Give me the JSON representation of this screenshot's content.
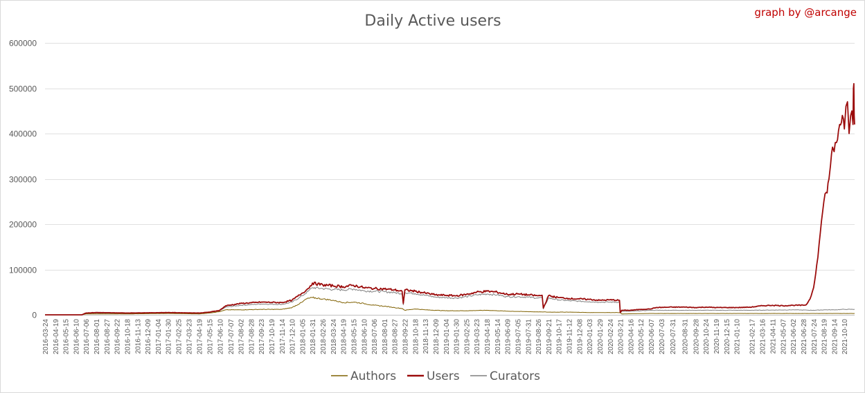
{
  "chart_data": {
    "type": "line",
    "title": "Daily Active users",
    "credit": "graph by @arcange",
    "xlabel": "",
    "ylabel": "",
    "ylim": [
      0,
      600000
    ],
    "yticks": [
      0,
      100000,
      200000,
      300000,
      400000,
      500000,
      600000
    ],
    "grid": "horizontal",
    "legend_position": "bottom",
    "x_tick_labels": [
      "2016-03-24",
      "2016-04-19",
      "2016-05-15",
      "2016-06-10",
      "2016-07-06",
      "2016-08-01",
      "2016-08-27",
      "2016-09-22",
      "2016-10-18",
      "2016-11-13",
      "2016-12-09",
      "2017-01-04",
      "2017-01-30",
      "2017-02-25",
      "2017-03-23",
      "2017-04-19",
      "2017-05-15",
      "2017-06-10",
      "2017-07-07",
      "2017-08-02",
      "2017-08-28",
      "2017-09-23",
      "2017-10-19",
      "2017-11-14",
      "2017-12-10",
      "2018-01-05",
      "2018-01-31",
      "2018-02-26",
      "2018-03-24",
      "2018-04-19",
      "2018-05-15",
      "2018-06-10",
      "2018-07-06",
      "2018-08-01",
      "2018-08-27",
      "2018-09-22",
      "2018-10-18",
      "2018-11-13",
      "2018-12-09",
      "2019-01-04",
      "2019-01-30",
      "2019-02-25",
      "2019-03-23",
      "2019-04-18",
      "2019-05-14",
      "2019-06-09",
      "2019-07-05",
      "2019-07-31",
      "2019-08-26",
      "2019-09-21",
      "2019-10-17",
      "2019-11-12",
      "2019-12-08",
      "2020-01-03",
      "2020-01-29",
      "2020-02-24",
      "2020-03-21",
      "2020-04-16",
      "2020-05-12",
      "2020-06-07",
      "2020-07-03",
      "2020-07-31",
      "2020-08-31",
      "2020-09-28",
      "2020-10-24",
      "2020-11-19",
      "2020-12-15",
      "2021-01-10",
      "2021-02-17",
      "2021-03-16",
      "2021-04-11",
      "2021-05-07",
      "2021-06-02",
      "2021-06-28",
      "2021-07-24",
      "2021-08-19",
      "2021-09-14",
      "2021-10-10"
    ],
    "series": [
      {
        "name": "Authors",
        "color": "#7f6000",
        "x": [
          "2016-03-24",
          "2016-06-25",
          "2016-07-06",
          "2016-08-01",
          "2016-10-18",
          "2017-01-30",
          "2017-04-19",
          "2017-05-15",
          "2017-06-10",
          "2017-06-25",
          "2017-08-02",
          "2017-09-23",
          "2017-11-14",
          "2017-12-10",
          "2018-01-05",
          "2018-01-15",
          "2018-01-31",
          "2018-02-26",
          "2018-03-24",
          "2018-04-19",
          "2018-05-15",
          "2018-06-10",
          "2018-07-06",
          "2018-08-01",
          "2018-08-27",
          "2018-09-15",
          "2018-09-22",
          "2018-10-18",
          "2018-11-13",
          "2018-12-09",
          "2019-01-04",
          "2019-02-25",
          "2019-04-18",
          "2019-06-09",
          "2019-07-31",
          "2019-09-21",
          "2019-11-12",
          "2020-01-03",
          "2020-03-21",
          "2020-03-25",
          "2020-06-07",
          "2020-10-24",
          "2021-02-17",
          "2021-06-02",
          "2021-07-24",
          "2021-08-19",
          "2021-09-14",
          "2021-10-10",
          "2021-11-05"
        ],
        "values": [
          0,
          0,
          2000,
          2000,
          2000,
          3000,
          2000,
          4000,
          7000,
          11000,
          11000,
          12000,
          12000,
          16000,
          28000,
          35000,
          38000,
          35000,
          32000,
          27000,
          28000,
          25000,
          21000,
          19000,
          16000,
          14000,
          10000,
          13000,
          11000,
          10000,
          9000,
          9000,
          10000,
          8000,
          7000,
          6000,
          6000,
          5000,
          5000,
          2000,
          3000,
          3000,
          3000,
          3000,
          3000,
          3000,
          3000,
          3000,
          3000
        ]
      },
      {
        "name": "Users",
        "color": "#9b0b0b",
        "x": [
          "2016-03-24",
          "2016-06-25",
          "2016-07-06",
          "2016-08-01",
          "2016-10-18",
          "2017-01-30",
          "2017-04-19",
          "2017-05-15",
          "2017-06-10",
          "2017-06-25",
          "2017-08-02",
          "2017-09-23",
          "2017-11-14",
          "2017-12-10",
          "2018-01-05",
          "2018-01-20",
          "2018-01-31",
          "2018-02-26",
          "2018-03-24",
          "2018-04-19",
          "2018-05-15",
          "2018-06-10",
          "2018-07-06",
          "2018-08-01",
          "2018-08-27",
          "2018-09-15",
          "2018-09-18",
          "2018-09-22",
          "2018-10-18",
          "2018-11-13",
          "2018-12-09",
          "2019-01-04",
          "2019-01-30",
          "2019-02-25",
          "2019-03-23",
          "2019-04-18",
          "2019-05-14",
          "2019-06-09",
          "2019-07-05",
          "2019-07-31",
          "2019-08-26",
          "2019-09-05",
          "2019-09-08",
          "2019-09-21",
          "2019-10-17",
          "2019-11-12",
          "2019-12-08",
          "2020-01-03",
          "2020-01-29",
          "2020-02-24",
          "2020-03-19",
          "2020-03-21",
          "2020-03-25",
          "2020-04-16",
          "2020-05-12",
          "2020-06-07",
          "2020-06-20",
          "2020-07-31",
          "2020-08-31",
          "2020-09-28",
          "2020-10-24",
          "2020-11-19",
          "2020-12-15",
          "2021-01-10",
          "2021-02-17",
          "2021-03-16",
          "2021-04-11",
          "2021-05-07",
          "2021-06-02",
          "2021-06-28",
          "2021-07-05",
          "2021-07-15",
          "2021-07-24",
          "2021-08-01",
          "2021-08-10",
          "2021-08-19",
          "2021-08-25",
          "2021-09-01",
          "2021-09-05",
          "2021-09-10",
          "2021-09-14",
          "2021-09-20",
          "2021-09-28",
          "2021-10-05",
          "2021-10-10",
          "2021-10-14",
          "2021-10-18",
          "2021-10-22",
          "2021-10-26",
          "2021-10-29",
          "2021-11-01",
          "2021-11-02",
          "2021-11-03",
          "2021-11-04",
          "2021-11-05"
        ],
        "values": [
          0,
          0,
          4000,
          5000,
          4000,
          5000,
          4000,
          6000,
          10000,
          20000,
          25000,
          28000,
          27000,
          32000,
          48000,
          58000,
          70000,
          66000,
          64000,
          62000,
          65000,
          60000,
          58000,
          57000,
          55000,
          52000,
          25000,
          55000,
          52000,
          48000,
          44000,
          43000,
          42000,
          45000,
          50000,
          52000,
          50000,
          45000,
          46000,
          44000,
          42000,
          43000,
          15000,
          42000,
          38000,
          36000,
          35000,
          34000,
          32000,
          33000,
          32000,
          5000,
          10000,
          10000,
          12000,
          13000,
          16000,
          17000,
          17000,
          16000,
          17000,
          16000,
          16000,
          16000,
          17000,
          20000,
          21000,
          20000,
          21000,
          21000,
          22000,
          35000,
          60000,
          110000,
          180000,
          250000,
          270000,
          300000,
          330000,
          370000,
          360000,
          380000,
          420000,
          440000,
          410000,
          460000,
          470000,
          400000,
          440000,
          450000,
          420000,
          500000,
          510000,
          440000,
          420000
        ]
      },
      {
        "name": "Curators",
        "color": "#7f7f7f",
        "x": [
          "2016-03-24",
          "2016-06-25",
          "2016-07-06",
          "2016-08-01",
          "2016-10-18",
          "2017-01-30",
          "2017-04-19",
          "2017-05-15",
          "2017-06-10",
          "2017-06-25",
          "2017-08-02",
          "2017-09-23",
          "2017-11-14",
          "2017-12-10",
          "2018-01-05",
          "2018-01-20",
          "2018-01-31",
          "2018-02-26",
          "2018-03-24",
          "2018-04-19",
          "2018-05-15",
          "2018-06-10",
          "2018-07-06",
          "2018-08-01",
          "2018-08-27",
          "2018-09-15",
          "2018-09-18",
          "2018-09-22",
          "2018-10-18",
          "2018-11-13",
          "2018-12-09",
          "2019-01-04",
          "2019-01-30",
          "2019-02-25",
          "2019-03-23",
          "2019-04-18",
          "2019-05-14",
          "2019-06-09",
          "2019-07-05",
          "2019-07-31",
          "2019-08-26",
          "2019-09-05",
          "2019-09-08",
          "2019-09-21",
          "2019-10-17",
          "2019-11-12",
          "2019-12-08",
          "2020-01-03",
          "2020-01-29",
          "2020-02-24",
          "2020-03-19",
          "2020-03-21",
          "2020-03-25",
          "2020-04-16",
          "2020-05-12",
          "2020-06-07",
          "2020-07-31",
          "2020-10-24",
          "2021-02-17",
          "2021-06-02",
          "2021-07-24",
          "2021-08-19",
          "2021-09-14",
          "2021-10-10",
          "2021-11-05"
        ],
        "values": [
          0,
          0,
          3000,
          4000,
          3000,
          4000,
          3000,
          5000,
          9000,
          17000,
          21000,
          24000,
          23000,
          28000,
          42000,
          52000,
          60000,
          58000,
          56000,
          55000,
          57000,
          53000,
          52000,
          51000,
          49000,
          47000,
          22000,
          49000,
          47000,
          43000,
          39000,
          38000,
          37000,
          40000,
          44000,
          46000,
          44000,
          40000,
          40000,
          39000,
          37000,
          38000,
          13000,
          37000,
          33000,
          31000,
          30000,
          29000,
          28000,
          28000,
          28000,
          4000,
          8000,
          8000,
          9000,
          10000,
          10000,
          10000,
          10000,
          11000,
          10000,
          11000,
          11000,
          12000,
          12000
        ]
      }
    ]
  }
}
